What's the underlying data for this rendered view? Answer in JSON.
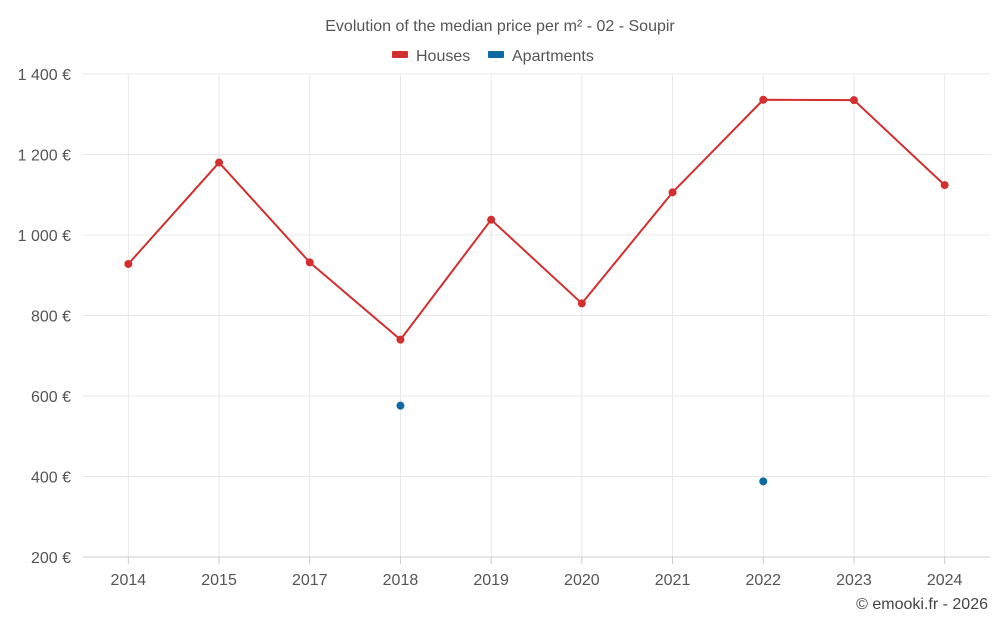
{
  "chart_data": {
    "type": "line",
    "title": "Evolution of the median price per m² - 02 - Soupir",
    "categories": [
      "2014",
      "2015",
      "2017",
      "2018",
      "2019",
      "2020",
      "2021",
      "2022",
      "2023",
      "2024"
    ],
    "series": [
      {
        "name": "Houses",
        "color": "#d32f2f",
        "values": [
          928,
          1180,
          932,
          740,
          1038,
          830,
          1106,
          1336,
          1335,
          1124
        ]
      },
      {
        "name": "Apartments",
        "color": "#0b6aa2",
        "values": [
          null,
          null,
          null,
          576,
          null,
          null,
          null,
          388,
          null,
          null
        ]
      }
    ],
    "yticks": [
      {
        "value": 200,
        "label": "200 €"
      },
      {
        "value": 400,
        "label": "400 €"
      },
      {
        "value": 600,
        "label": "600 €"
      },
      {
        "value": 800,
        "label": "800 €"
      },
      {
        "value": 1000,
        "label": "1 000 €"
      },
      {
        "value": 1200,
        "label": "1 200 €"
      },
      {
        "value": 1400,
        "label": "1 400 €"
      }
    ],
    "ylim": [
      200,
      1400
    ],
    "grid": true,
    "legend_position": "top-center",
    "xlabel": "",
    "ylabel": ""
  },
  "credit": "© emooki.fr - 2026"
}
